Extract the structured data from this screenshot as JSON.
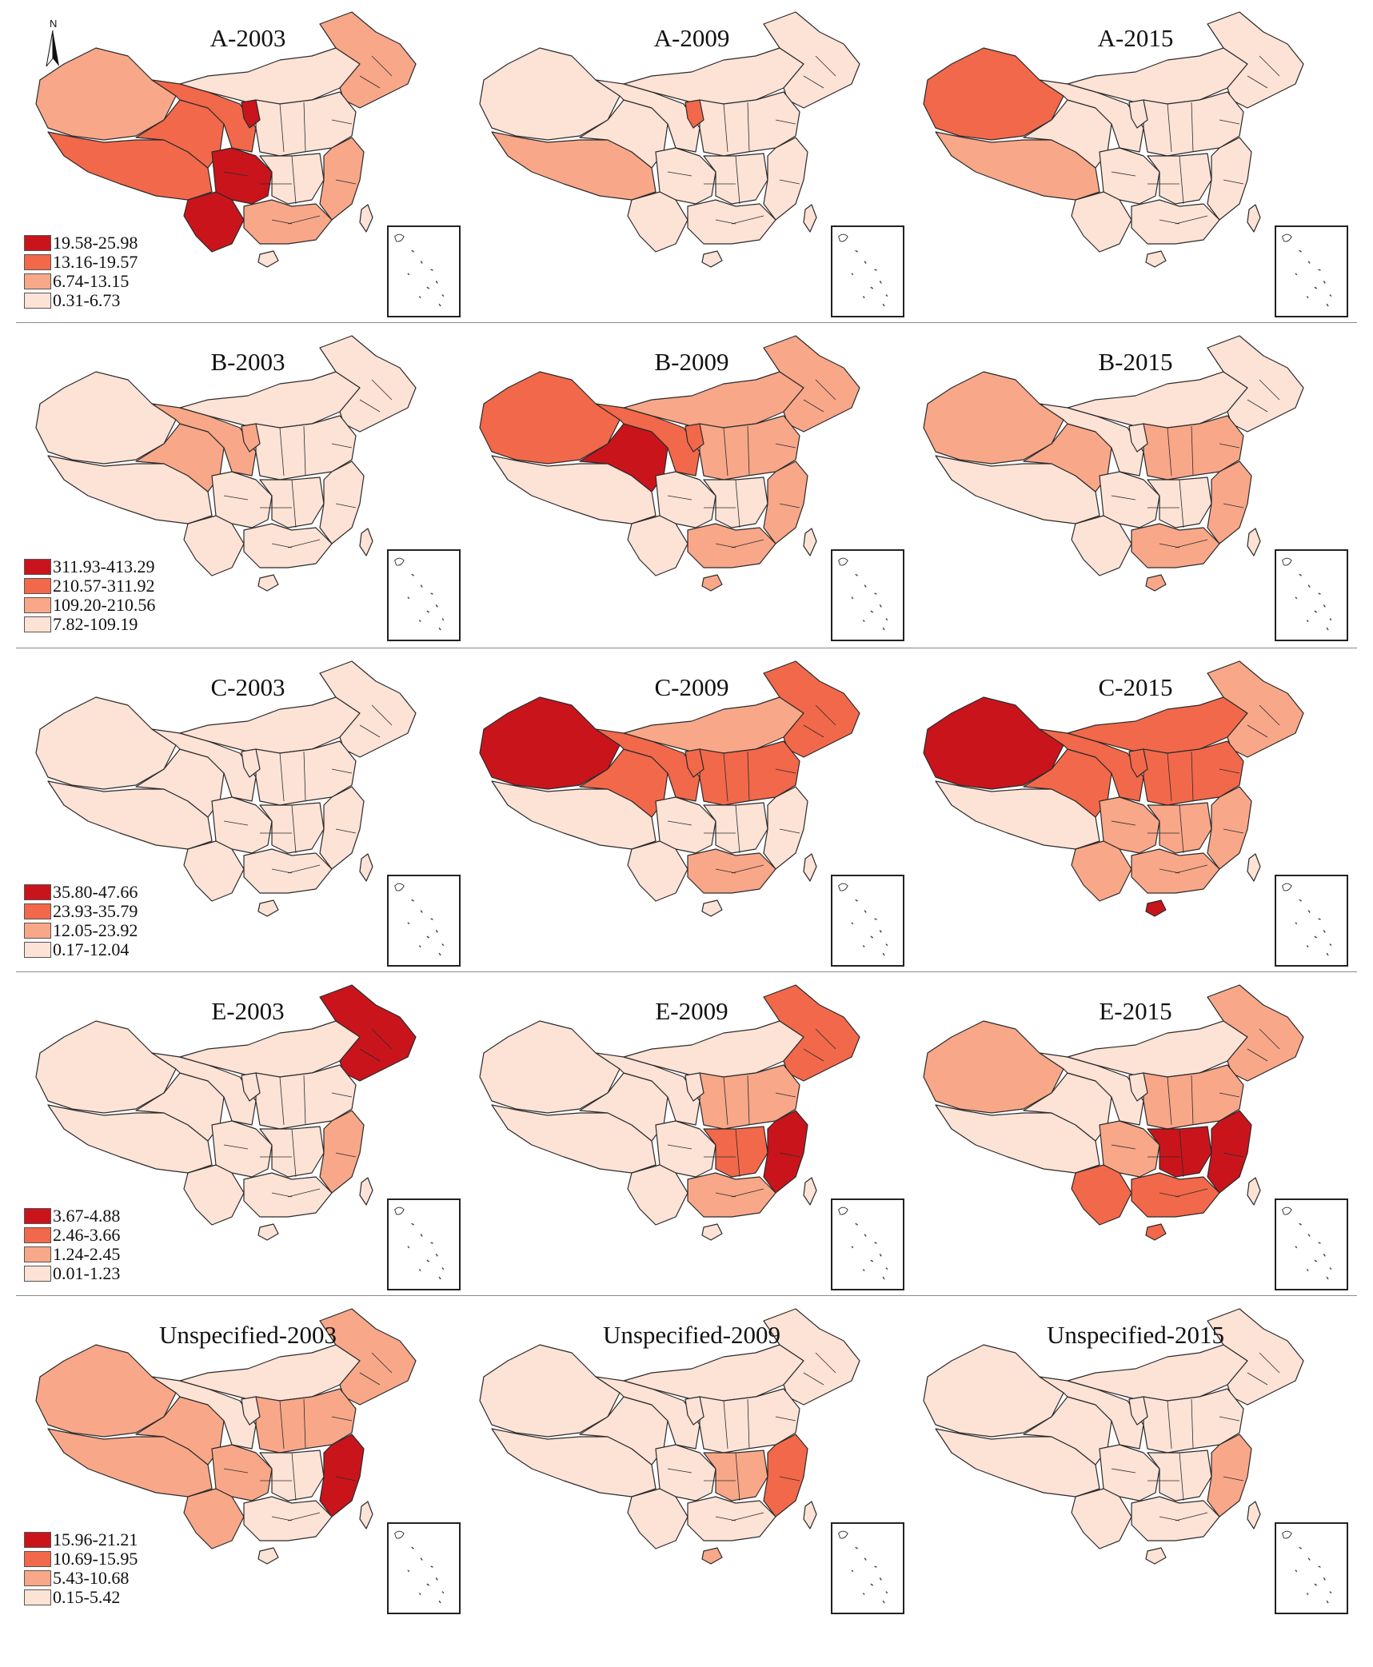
{
  "colors": {
    "class1": "#fde2d6",
    "class2": "#f8a789",
    "class3": "#f2684a",
    "class4": "#c9141c",
    "outline": "#2b2b2b"
  },
  "north_arrow": {
    "label": "N",
    "icon": "north-arrow-icon"
  },
  "rows": [
    {
      "legend": [
        "19.58-25.98",
        "13.16-19.57",
        "6.74-13.15",
        "0.31-6.73"
      ],
      "panels": [
        {
          "title": "A-2003",
          "regions": {
            "xinjiang": 2,
            "tibet": 3,
            "qinghai": 3,
            "gansu": 3,
            "inner_mongolia": 1,
            "sichuan": 4,
            "yunnan": 4,
            "ningxia": 4,
            "northeast": 2,
            "north_china": 1,
            "central": 1,
            "south": 2,
            "east": 2,
            "hainan": 1,
            "taiwan": 1
          }
        },
        {
          "title": "A-2009",
          "regions": {
            "xinjiang": 1,
            "tibet": 2,
            "qinghai": 1,
            "gansu": 1,
            "inner_mongolia": 1,
            "sichuan": 1,
            "yunnan": 1,
            "ningxia": 3,
            "northeast": 1,
            "north_china": 1,
            "central": 1,
            "south": 1,
            "east": 1,
            "hainan": 1,
            "taiwan": 1
          }
        },
        {
          "title": "A-2015",
          "regions": {
            "xinjiang": 3,
            "tibet": 2,
            "qinghai": 1,
            "gansu": 1,
            "inner_mongolia": 1,
            "sichuan": 1,
            "yunnan": 1,
            "ningxia": 1,
            "northeast": 1,
            "north_china": 1,
            "central": 1,
            "south": 1,
            "east": 1,
            "hainan": 1,
            "taiwan": 1
          }
        }
      ]
    },
    {
      "legend": [
        "311.93-413.29",
        "210.57-311.92",
        "109.20-210.56",
        "7.82-109.19"
      ],
      "panels": [
        {
          "title": "B-2003",
          "regions": {
            "xinjiang": 1,
            "tibet": 1,
            "qinghai": 2,
            "gansu": 2,
            "inner_mongolia": 1,
            "sichuan": 1,
            "yunnan": 1,
            "ningxia": 2,
            "northeast": 1,
            "north_china": 1,
            "central": 1,
            "south": 1,
            "east": 1,
            "hainan": 1,
            "taiwan": 1
          }
        },
        {
          "title": "B-2009",
          "regions": {
            "xinjiang": 3,
            "tibet": 1,
            "qinghai": 4,
            "gansu": 3,
            "inner_mongolia": 2,
            "sichuan": 1,
            "yunnan": 1,
            "ningxia": 3,
            "northeast": 2,
            "north_china": 2,
            "central": 1,
            "south": 2,
            "east": 2,
            "hainan": 2,
            "taiwan": 1
          }
        },
        {
          "title": "B-2015",
          "regions": {
            "xinjiang": 2,
            "tibet": 1,
            "qinghai": 2,
            "gansu": 1,
            "inner_mongolia": 1,
            "sichuan": 1,
            "yunnan": 1,
            "ningxia": 1,
            "northeast": 1,
            "north_china": 2,
            "central": 1,
            "south": 2,
            "east": 2,
            "hainan": 2,
            "taiwan": 1
          }
        }
      ]
    },
    {
      "legend": [
        "35.80-47.66",
        "23.93-35.79",
        "12.05-23.92",
        "0.17-12.04"
      ],
      "panels": [
        {
          "title": "C-2003",
          "regions": {
            "xinjiang": 1,
            "tibet": 1,
            "qinghai": 1,
            "gansu": 1,
            "inner_mongolia": 1,
            "sichuan": 1,
            "yunnan": 1,
            "ningxia": 1,
            "northeast": 1,
            "north_china": 1,
            "central": 1,
            "south": 1,
            "east": 1,
            "hainan": 1,
            "taiwan": 1
          }
        },
        {
          "title": "C-2009",
          "regions": {
            "xinjiang": 4,
            "tibet": 1,
            "qinghai": 3,
            "gansu": 3,
            "inner_mongolia": 2,
            "sichuan": 1,
            "yunnan": 1,
            "ningxia": 3,
            "northeast": 3,
            "north_china": 3,
            "central": 1,
            "south": 2,
            "east": 1,
            "hainan": 1,
            "taiwan": 1
          }
        },
        {
          "title": "C-2015",
          "regions": {
            "xinjiang": 4,
            "tibet": 1,
            "qinghai": 3,
            "gansu": 3,
            "inner_mongolia": 3,
            "sichuan": 2,
            "yunnan": 2,
            "ningxia": 3,
            "northeast": 2,
            "north_china": 3,
            "central": 2,
            "south": 2,
            "east": 2,
            "hainan": 4,
            "taiwan": 1
          }
        }
      ]
    },
    {
      "legend": [
        "3.67-4.88",
        "2.46-3.66",
        "1.24-2.45",
        "0.01-1.23"
      ],
      "panels": [
        {
          "title": "E-2003",
          "regions": {
            "xinjiang": 1,
            "tibet": 1,
            "qinghai": 1,
            "gansu": 1,
            "inner_mongolia": 1,
            "sichuan": 1,
            "yunnan": 1,
            "ningxia": 1,
            "northeast": 4,
            "north_china": 1,
            "central": 1,
            "south": 1,
            "east": 2,
            "hainan": 1,
            "taiwan": 1
          }
        },
        {
          "title": "E-2009",
          "regions": {
            "xinjiang": 1,
            "tibet": 1,
            "qinghai": 1,
            "gansu": 1,
            "inner_mongolia": 1,
            "sichuan": 1,
            "yunnan": 1,
            "ningxia": 1,
            "northeast": 3,
            "north_china": 2,
            "central": 3,
            "south": 2,
            "east": 4,
            "hainan": 1,
            "taiwan": 1
          }
        },
        {
          "title": "E-2015",
          "regions": {
            "xinjiang": 2,
            "tibet": 1,
            "qinghai": 1,
            "gansu": 1,
            "inner_mongolia": 1,
            "sichuan": 2,
            "yunnan": 3,
            "ningxia": 1,
            "northeast": 2,
            "north_china": 2,
            "central": 4,
            "south": 3,
            "east": 4,
            "hainan": 3,
            "taiwan": 1
          }
        }
      ]
    },
    {
      "legend": [
        "15.96-21.21",
        "10.69-15.95",
        "5.43-10.68",
        "0.15-5.42"
      ],
      "panels": [
        {
          "title": "Unspecified-2003",
          "regions": {
            "xinjiang": 2,
            "tibet": 2,
            "qinghai": 2,
            "gansu": 1,
            "inner_mongolia": 1,
            "sichuan": 2,
            "yunnan": 2,
            "ningxia": 1,
            "northeast": 2,
            "north_china": 2,
            "central": 1,
            "south": 1,
            "east": 4,
            "hainan": 1,
            "taiwan": 1
          }
        },
        {
          "title": "Unspecified-2009",
          "regions": {
            "xinjiang": 1,
            "tibet": 1,
            "qinghai": 1,
            "gansu": 1,
            "inner_mongolia": 1,
            "sichuan": 1,
            "yunnan": 1,
            "ningxia": 1,
            "northeast": 1,
            "north_china": 1,
            "central": 2,
            "south": 1,
            "east": 3,
            "hainan": 2,
            "taiwan": 1
          }
        },
        {
          "title": "Unspecified-2015",
          "regions": {
            "xinjiang": 1,
            "tibet": 1,
            "qinghai": 1,
            "gansu": 1,
            "inner_mongolia": 1,
            "sichuan": 1,
            "yunnan": 1,
            "ningxia": 1,
            "northeast": 1,
            "north_china": 1,
            "central": 1,
            "south": 1,
            "east": 2,
            "hainan": 1,
            "taiwan": 1
          }
        }
      ]
    }
  ]
}
